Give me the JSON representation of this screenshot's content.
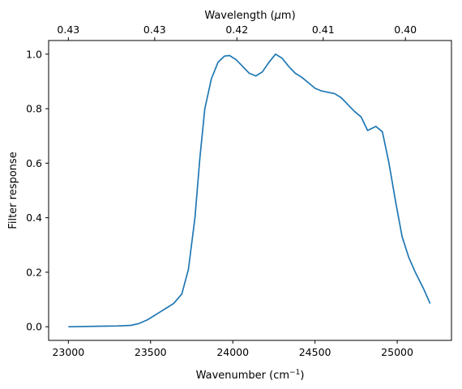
{
  "chart_data": {
    "type": "line",
    "xlabel": "Wavenumber (cm",
    "xlabel_sup": "−1",
    "xlabel_close": ")",
    "ylabel": "Filter response",
    "top_xlabel": "Wavelength (",
    "top_xlabel_sym": "μ",
    "top_xlabel_unit": "m)",
    "xlim": [
      22880,
      25330
    ],
    "ylim": [
      -0.05,
      1.05
    ],
    "x_ticks": [
      23000,
      23500,
      24000,
      24500,
      25000
    ],
    "y_ticks": [
      0.0,
      0.2,
      0.4,
      0.6,
      0.8,
      1.0
    ],
    "y_tick_labels": [
      "0.0",
      "0.2",
      "0.4",
      "0.6",
      "0.8",
      "1.0"
    ],
    "top_ticks": [
      {
        "position": 23000,
        "label": "0.43"
      },
      {
        "position": 23525,
        "label": "0.43"
      },
      {
        "position": 24025,
        "label": "0.42"
      },
      {
        "position": 24550,
        "label": "0.41"
      },
      {
        "position": 25050,
        "label": "0.40"
      }
    ],
    "grid": false,
    "line_color": "#1f77b4",
    "series": [
      {
        "x": [
          23000,
          23200,
          23300,
          23380,
          23430,
          23480,
          23520,
          23560,
          23600,
          23640,
          23690,
          23730,
          23770,
          23800,
          23830,
          23870,
          23910,
          23950,
          23980,
          24020,
          24060,
          24100,
          24140,
          24180,
          24220,
          24260,
          24300,
          24340,
          24380,
          24420,
          24460,
          24500,
          24540,
          24580,
          24620,
          24660,
          24700,
          24740,
          24780,
          24820,
          24870,
          24910,
          24950,
          24990,
          25030,
          25070,
          25110,
          25160,
          25200
        ],
        "y": [
          0.0,
          0.002,
          0.003,
          0.005,
          0.012,
          0.025,
          0.04,
          0.055,
          0.07,
          0.085,
          0.12,
          0.21,
          0.4,
          0.62,
          0.8,
          0.91,
          0.97,
          0.993,
          0.995,
          0.98,
          0.955,
          0.93,
          0.92,
          0.935,
          0.97,
          1.0,
          0.985,
          0.955,
          0.93,
          0.915,
          0.895,
          0.875,
          0.865,
          0.86,
          0.855,
          0.84,
          0.815,
          0.79,
          0.77,
          0.72,
          0.735,
          0.715,
          0.6,
          0.46,
          0.33,
          0.255,
          0.2,
          0.14,
          0.085
        ]
      }
    ]
  }
}
